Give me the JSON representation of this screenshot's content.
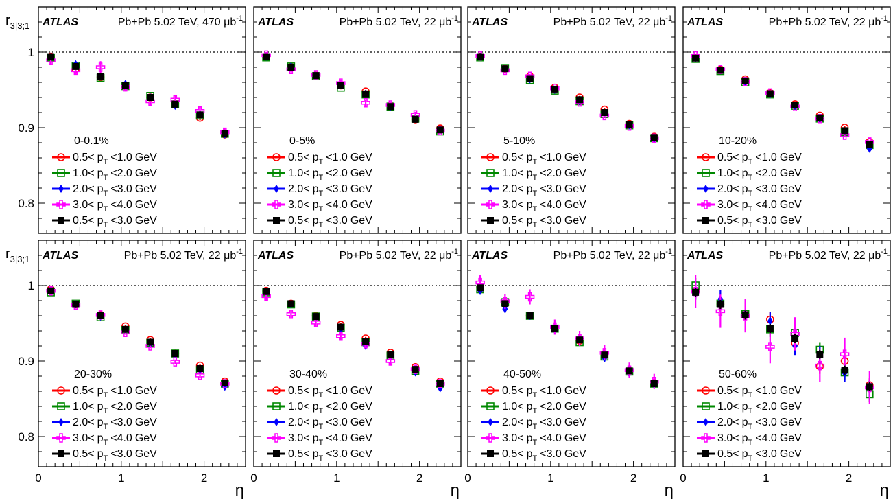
{
  "figure": {
    "y_label": "r",
    "y_label_sub": "3|3;1",
    "x_label": "η",
    "atlas_label": "ATLAS",
    "legend": [
      {
        "lo": "0.5",
        "hi": "1.0",
        "color": "#ff0000",
        "marker": "open-circle"
      },
      {
        "lo": "1.0",
        "hi": "2.0",
        "color": "#008800",
        "marker": "open-square"
      },
      {
        "lo": "2.0",
        "hi": "3.0",
        "color": "#0000ff",
        "marker": "filled-diamond"
      },
      {
        "lo": "3.0",
        "hi": "4.0",
        "color": "#ff00ff",
        "marker": "open-cross"
      },
      {
        "lo": "0.5",
        "hi": "3.0",
        "color": "#000000",
        "marker": "filled-square"
      }
    ],
    "legend_texts": {
      "lt": "<",
      "unit": "GeV",
      "p": "p",
      "sub": "T"
    }
  },
  "chart_data": [
    {
      "type": "scatter",
      "centrality": "0-0.1%",
      "energy_text": "Pb+Pb 5.02 TeV, 470 μb",
      "lumi_sup": "-1",
      "x": [
        0.15,
        0.45,
        0.75,
        1.05,
        1.35,
        1.65,
        1.95,
        2.25
      ],
      "xlim": [
        0,
        2.5
      ],
      "ylim": [
        0.76,
        1.06
      ],
      "reference_line": 1.0,
      "series": [
        {
          "values": [
            0.994,
            0.978,
            0.967,
            0.956,
            0.94,
            0.932,
            0.913,
            0.891
          ],
          "errors": [
            0.003,
            0.003,
            0.003,
            0.003,
            0.003,
            0.003,
            0.003,
            0.003
          ]
        },
        {
          "values": [
            0.993,
            0.982,
            0.966,
            0.955,
            0.942,
            0.931,
            0.916,
            0.892
          ],
          "errors": [
            0.003,
            0.003,
            0.003,
            0.003,
            0.003,
            0.003,
            0.003,
            0.003
          ]
        },
        {
          "values": [
            0.994,
            0.984,
            0.968,
            0.958,
            0.94,
            0.929,
            0.918,
            0.891
          ],
          "errors": [
            0.003,
            0.003,
            0.003,
            0.003,
            0.003,
            0.003,
            0.003,
            0.003
          ]
        },
        {
          "values": [
            0.989,
            0.976,
            0.98,
            0.954,
            0.935,
            0.937,
            0.922,
            0.894
          ],
          "errors": [
            0.006,
            0.006,
            0.008,
            0.006,
            0.006,
            0.006,
            0.006,
            0.006
          ]
        },
        {
          "values": [
            0.994,
            0.981,
            0.968,
            0.956,
            0.94,
            0.931,
            0.917,
            0.892
          ],
          "errors": [
            0.002,
            0.002,
            0.002,
            0.002,
            0.002,
            0.002,
            0.002,
            0.002
          ]
        }
      ]
    },
    {
      "type": "scatter",
      "centrality": "0-5%",
      "energy_text": "Pb+Pb 5.02 TeV, 22 μb",
      "lumi_sup": "-1",
      "x": [
        0.15,
        0.45,
        0.75,
        1.05,
        1.35,
        1.65,
        1.95,
        2.25
      ],
      "xlim": [
        0,
        2.5
      ],
      "ylim": [
        0.76,
        1.06
      ],
      "reference_line": 1.0,
      "series": [
        {
          "values": [
            0.994,
            0.98,
            0.969,
            0.956,
            0.948,
            0.929,
            0.911,
            0.899
          ],
          "errors": [
            0.002,
            0.002,
            0.002,
            0.002,
            0.002,
            0.002,
            0.002,
            0.002
          ]
        },
        {
          "values": [
            0.993,
            0.981,
            0.968,
            0.953,
            0.944,
            0.928,
            0.912,
            0.895
          ],
          "errors": [
            0.002,
            0.002,
            0.002,
            0.002,
            0.002,
            0.002,
            0.002,
            0.002
          ]
        },
        {
          "values": [
            0.994,
            0.981,
            0.969,
            0.957,
            0.945,
            0.928,
            0.912,
            0.897
          ],
          "errors": [
            0.002,
            0.002,
            0.002,
            0.002,
            0.002,
            0.002,
            0.002,
            0.002
          ]
        },
        {
          "values": [
            0.996,
            0.977,
            0.97,
            0.959,
            0.933,
            0.93,
            0.917,
            0.896
          ],
          "errors": [
            0.004,
            0.004,
            0.004,
            0.004,
            0.004,
            0.004,
            0.004,
            0.004
          ]
        },
        {
          "values": [
            0.994,
            0.98,
            0.969,
            0.956,
            0.944,
            0.928,
            0.911,
            0.897
          ],
          "errors": [
            0.001,
            0.001,
            0.001,
            0.001,
            0.001,
            0.001,
            0.001,
            0.001
          ]
        }
      ]
    },
    {
      "type": "scatter",
      "centrality": "5-10%",
      "energy_text": "Pb+Pb 5.02 TeV, 22 μb",
      "lumi_sup": "-1",
      "x": [
        0.15,
        0.45,
        0.75,
        1.05,
        1.35,
        1.65,
        1.95,
        2.25
      ],
      "xlim": [
        0,
        2.5
      ],
      "ylim": [
        0.76,
        1.06
      ],
      "reference_line": 1.0,
      "series": [
        {
          "values": [
            0.994,
            0.978,
            0.968,
            0.953,
            0.94,
            0.924,
            0.905,
            0.888
          ],
          "errors": [
            0.002,
            0.002,
            0.002,
            0.002,
            0.002,
            0.002,
            0.002,
            0.002
          ]
        },
        {
          "values": [
            0.993,
            0.979,
            0.963,
            0.949,
            0.935,
            0.918,
            0.903,
            0.886
          ],
          "errors": [
            0.002,
            0.002,
            0.002,
            0.002,
            0.002,
            0.002,
            0.002,
            0.002
          ]
        },
        {
          "values": [
            0.994,
            0.978,
            0.964,
            0.95,
            0.935,
            0.919,
            0.903,
            0.884
          ],
          "errors": [
            0.002,
            0.002,
            0.002,
            0.002,
            0.002,
            0.002,
            0.002,
            0.002
          ]
        },
        {
          "values": [
            0.995,
            0.976,
            0.968,
            0.952,
            0.934,
            0.916,
            0.902,
            0.886
          ],
          "errors": [
            0.003,
            0.003,
            0.003,
            0.003,
            0.003,
            0.003,
            0.003,
            0.003
          ]
        },
        {
          "values": [
            0.994,
            0.978,
            0.965,
            0.951,
            0.937,
            0.92,
            0.904,
            0.887
          ],
          "errors": [
            0.001,
            0.001,
            0.001,
            0.001,
            0.001,
            0.001,
            0.001,
            0.001
          ]
        }
      ]
    },
    {
      "type": "scatter",
      "centrality": "10-20%",
      "energy_text": "Pb+Pb 5.02 TeV, 22 μb",
      "lumi_sup": "-1",
      "x": [
        0.15,
        0.45,
        0.75,
        1.05,
        1.35,
        1.65,
        1.95,
        2.25
      ],
      "xlim": [
        0,
        2.5
      ],
      "ylim": [
        0.76,
        1.06
      ],
      "reference_line": 1.0,
      "series": [
        {
          "values": [
            0.993,
            0.977,
            0.964,
            0.946,
            0.931,
            0.916,
            0.9,
            0.881
          ],
          "errors": [
            0.002,
            0.002,
            0.002,
            0.002,
            0.002,
            0.002,
            0.002,
            0.002
          ]
        },
        {
          "values": [
            0.991,
            0.975,
            0.96,
            0.944,
            0.929,
            0.912,
            0.894,
            0.877
          ],
          "errors": [
            0.002,
            0.002,
            0.002,
            0.002,
            0.002,
            0.002,
            0.002,
            0.002
          ]
        },
        {
          "values": [
            0.992,
            0.976,
            0.96,
            0.944,
            0.929,
            0.912,
            0.895,
            0.872
          ],
          "errors": [
            0.002,
            0.002,
            0.002,
            0.002,
            0.002,
            0.002,
            0.002,
            0.002
          ]
        },
        {
          "values": [
            0.995,
            0.977,
            0.961,
            0.946,
            0.928,
            0.912,
            0.89,
            0.881
          ],
          "errors": [
            0.002,
            0.002,
            0.002,
            0.002,
            0.002,
            0.002,
            0.002,
            0.002
          ]
        },
        {
          "values": [
            0.992,
            0.976,
            0.962,
            0.945,
            0.93,
            0.913,
            0.896,
            0.878
          ],
          "errors": [
            0.001,
            0.001,
            0.001,
            0.001,
            0.001,
            0.001,
            0.001,
            0.001
          ]
        }
      ]
    },
    {
      "type": "scatter",
      "centrality": "20-30%",
      "energy_text": "Pb+Pb 5.02 TeV, 22 μb",
      "lumi_sup": "-1",
      "x": [
        0.15,
        0.45,
        0.75,
        1.05,
        1.35,
        1.65,
        1.95,
        2.25
      ],
      "xlim": [
        0,
        2.5
      ],
      "ylim": [
        0.76,
        1.06
      ],
      "reference_line": 1.0,
      "series": [
        {
          "values": [
            0.995,
            0.975,
            0.961,
            0.946,
            0.928,
            0.91,
            0.894,
            0.873
          ],
          "errors": [
            0.002,
            0.002,
            0.002,
            0.002,
            0.002,
            0.002,
            0.002,
            0.002
          ]
        },
        {
          "values": [
            0.991,
            0.976,
            0.958,
            0.941,
            0.924,
            0.91,
            0.888,
            0.87
          ],
          "errors": [
            0.002,
            0.002,
            0.002,
            0.002,
            0.002,
            0.002,
            0.002,
            0.002
          ]
        },
        {
          "values": [
            0.993,
            0.975,
            0.959,
            0.941,
            0.923,
            0.909,
            0.887,
            0.866
          ],
          "errors": [
            0.002,
            0.002,
            0.002,
            0.002,
            0.002,
            0.002,
            0.002,
            0.002
          ]
        },
        {
          "values": [
            0.993,
            0.974,
            0.961,
            0.938,
            0.92,
            0.899,
            0.881,
            0.87
          ],
          "errors": [
            0.003,
            0.003,
            0.003,
            0.003,
            0.003,
            0.003,
            0.003,
            0.003
          ]
        },
        {
          "values": [
            0.993,
            0.975,
            0.96,
            0.942,
            0.925,
            0.91,
            0.89,
            0.871
          ],
          "errors": [
            0.001,
            0.001,
            0.001,
            0.001,
            0.001,
            0.001,
            0.001,
            0.001
          ]
        }
      ]
    },
    {
      "type": "scatter",
      "centrality": "30-40%",
      "energy_text": "Pb+Pb 5.02 TeV, 22 μb",
      "lumi_sup": "-1",
      "x": [
        0.15,
        0.45,
        0.75,
        1.05,
        1.35,
        1.65,
        1.95,
        2.25
      ],
      "xlim": [
        0,
        2.5
      ],
      "ylim": [
        0.76,
        1.06
      ],
      "reference_line": 1.0,
      "series": [
        {
          "values": [
            0.993,
            0.976,
            0.96,
            0.948,
            0.93,
            0.911,
            0.892,
            0.873
          ],
          "errors": [
            0.002,
            0.002,
            0.002,
            0.002,
            0.002,
            0.002,
            0.002,
            0.002
          ]
        },
        {
          "values": [
            0.991,
            0.975,
            0.959,
            0.944,
            0.925,
            0.907,
            0.887,
            0.87
          ],
          "errors": [
            0.002,
            0.002,
            0.002,
            0.002,
            0.002,
            0.002,
            0.002,
            0.002
          ]
        },
        {
          "values": [
            0.992,
            0.975,
            0.958,
            0.942,
            0.92,
            0.906,
            0.885,
            0.864
          ],
          "errors": [
            0.002,
            0.002,
            0.002,
            0.002,
            0.002,
            0.002,
            0.002,
            0.002
          ]
        },
        {
          "values": [
            0.986,
            0.962,
            0.951,
            0.933,
            0.923,
            0.9,
            0.889,
            0.87
          ],
          "errors": [
            0.005,
            0.005,
            0.005,
            0.005,
            0.005,
            0.005,
            0.005,
            0.005
          ]
        },
        {
          "values": [
            0.992,
            0.976,
            0.959,
            0.945,
            0.926,
            0.909,
            0.889,
            0.87
          ],
          "errors": [
            0.001,
            0.001,
            0.001,
            0.001,
            0.001,
            0.001,
            0.001,
            0.001
          ]
        }
      ]
    },
    {
      "type": "scatter",
      "centrality": "40-50%",
      "energy_text": "Pb+Pb 5.02 TeV, 22 μb",
      "lumi_sup": "-1",
      "x": [
        0.15,
        0.45,
        0.75,
        1.05,
        1.35,
        1.65,
        1.95,
        2.25
      ],
      "xlim": [
        0,
        2.5
      ],
      "ylim": [
        0.76,
        1.06
      ],
      "reference_line": 1.0,
      "series": [
        {
          "values": [
            0.998,
            0.976,
            0.96,
            0.943,
            0.927,
            0.908,
            0.887,
            0.871
          ],
          "errors": [
            0.004,
            0.004,
            0.004,
            0.004,
            0.004,
            0.004,
            0.004,
            0.004
          ]
        },
        {
          "values": [
            0.995,
            0.978,
            0.96,
            0.943,
            0.925,
            0.906,
            0.886,
            0.87
          ],
          "errors": [
            0.004,
            0.004,
            0.004,
            0.004,
            0.004,
            0.004,
            0.004,
            0.004
          ]
        },
        {
          "values": [
            0.993,
            0.969,
            0.96,
            0.942,
            0.929,
            0.904,
            0.884,
            0.869
          ],
          "errors": [
            0.005,
            0.005,
            0.005,
            0.005,
            0.005,
            0.005,
            0.005,
            0.005
          ]
        },
        {
          "values": [
            1.004,
            0.979,
            0.985,
            0.945,
            0.93,
            0.911,
            0.888,
            0.873
          ],
          "errors": [
            0.01,
            0.01,
            0.01,
            0.01,
            0.01,
            0.01,
            0.01,
            0.01
          ]
        },
        {
          "values": [
            0.997,
            0.976,
            0.96,
            0.943,
            0.928,
            0.908,
            0.887,
            0.87
          ],
          "errors": [
            0.003,
            0.003,
            0.003,
            0.003,
            0.003,
            0.003,
            0.003,
            0.003
          ]
        }
      ]
    },
    {
      "type": "scatter",
      "centrality": "50-60%",
      "energy_text": "Pb+Pb 5.02 TeV, 22 μb",
      "lumi_sup": "-1",
      "x": [
        0.15,
        0.45,
        0.75,
        1.05,
        1.35,
        1.65,
        1.95,
        2.25
      ],
      "xlim": [
        0,
        2.5
      ],
      "ylim": [
        0.76,
        1.06
      ],
      "reference_line": 1.0,
      "series": [
        {
          "values": [
            0.993,
            0.975,
            0.962,
            0.955,
            0.924,
            0.893,
            0.9,
            0.868
          ],
          "errors": [
            0.01,
            0.01,
            0.01,
            0.01,
            0.01,
            0.01,
            0.01,
            0.01
          ]
        },
        {
          "values": [
            1.0,
            0.976,
            0.962,
            0.942,
            0.937,
            0.915,
            0.885,
            0.856
          ],
          "errors": [
            0.01,
            0.01,
            0.01,
            0.01,
            0.01,
            0.01,
            0.01,
            0.01
          ]
        },
        {
          "values": [
            0.993,
            0.982,
            0.963,
            0.953,
            0.92,
            0.908,
            0.884,
            0.864
          ],
          "errors": [
            0.012,
            0.012,
            0.012,
            0.012,
            0.012,
            0.012,
            0.012,
            0.012
          ]
        },
        {
          "values": [
            0.992,
            0.966,
            0.96,
            0.919,
            0.936,
            0.894,
            0.909,
            0.865
          ],
          "errors": [
            0.022,
            0.022,
            0.022,
            0.022,
            0.022,
            0.022,
            0.022,
            0.022
          ]
        },
        {
          "values": [
            0.991,
            0.975,
            0.961,
            0.943,
            0.93,
            0.909,
            0.888,
            0.866
          ],
          "errors": [
            0.006,
            0.006,
            0.006,
            0.006,
            0.006,
            0.006,
            0.006,
            0.006
          ]
        }
      ]
    }
  ]
}
